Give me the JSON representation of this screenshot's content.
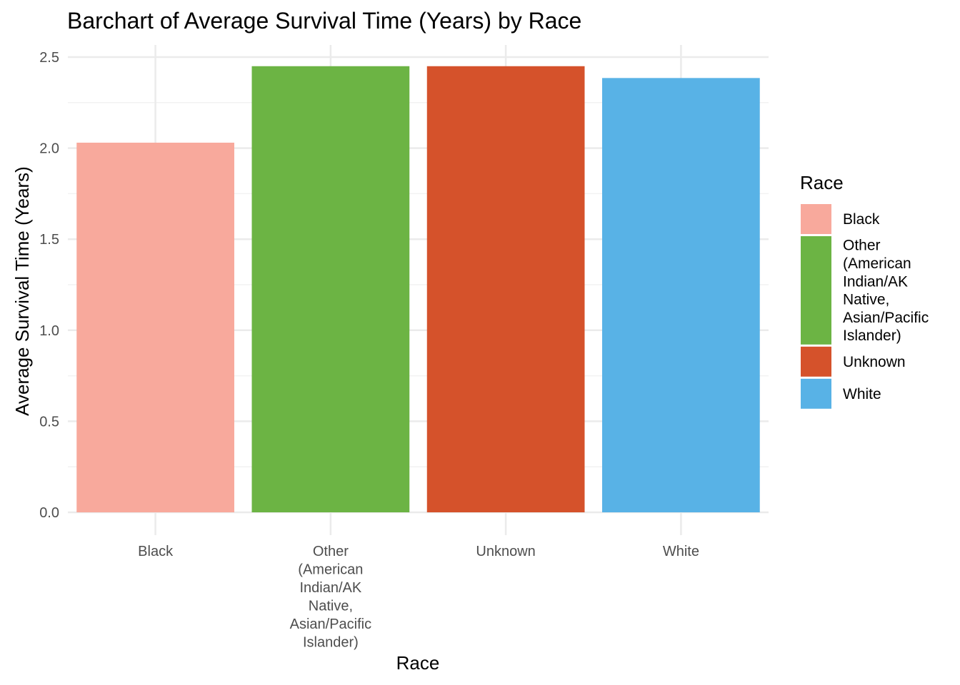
{
  "chart_data": {
    "type": "bar",
    "title": "Barchart of Average Survival Time (Years) by Race",
    "xlabel": "Race",
    "ylabel": "Average Survival Time (Years)",
    "ylim": [
      0,
      2.5
    ],
    "yticks": [
      "0.0",
      "0.5",
      "1.0",
      "1.5",
      "2.0",
      "2.5"
    ],
    "grid": true,
    "legend_position": "right",
    "categories": [
      "Black",
      "Other\n(American\nIndian/AK\nNative,\nAsian/Pacific\nIslander)",
      "Unknown",
      "White"
    ],
    "values": [
      2.03,
      2.45,
      2.45,
      2.385
    ],
    "colors": [
      "#F8A99C",
      "#6CB444",
      "#D5522B",
      "#58B2E6"
    ],
    "legend": {
      "title": "Race",
      "entries": [
        "Black",
        "Other\n(American\nIndian/AK\nNative,\nAsian/Pacific\nIslander)",
        "Unknown",
        "White"
      ]
    }
  }
}
